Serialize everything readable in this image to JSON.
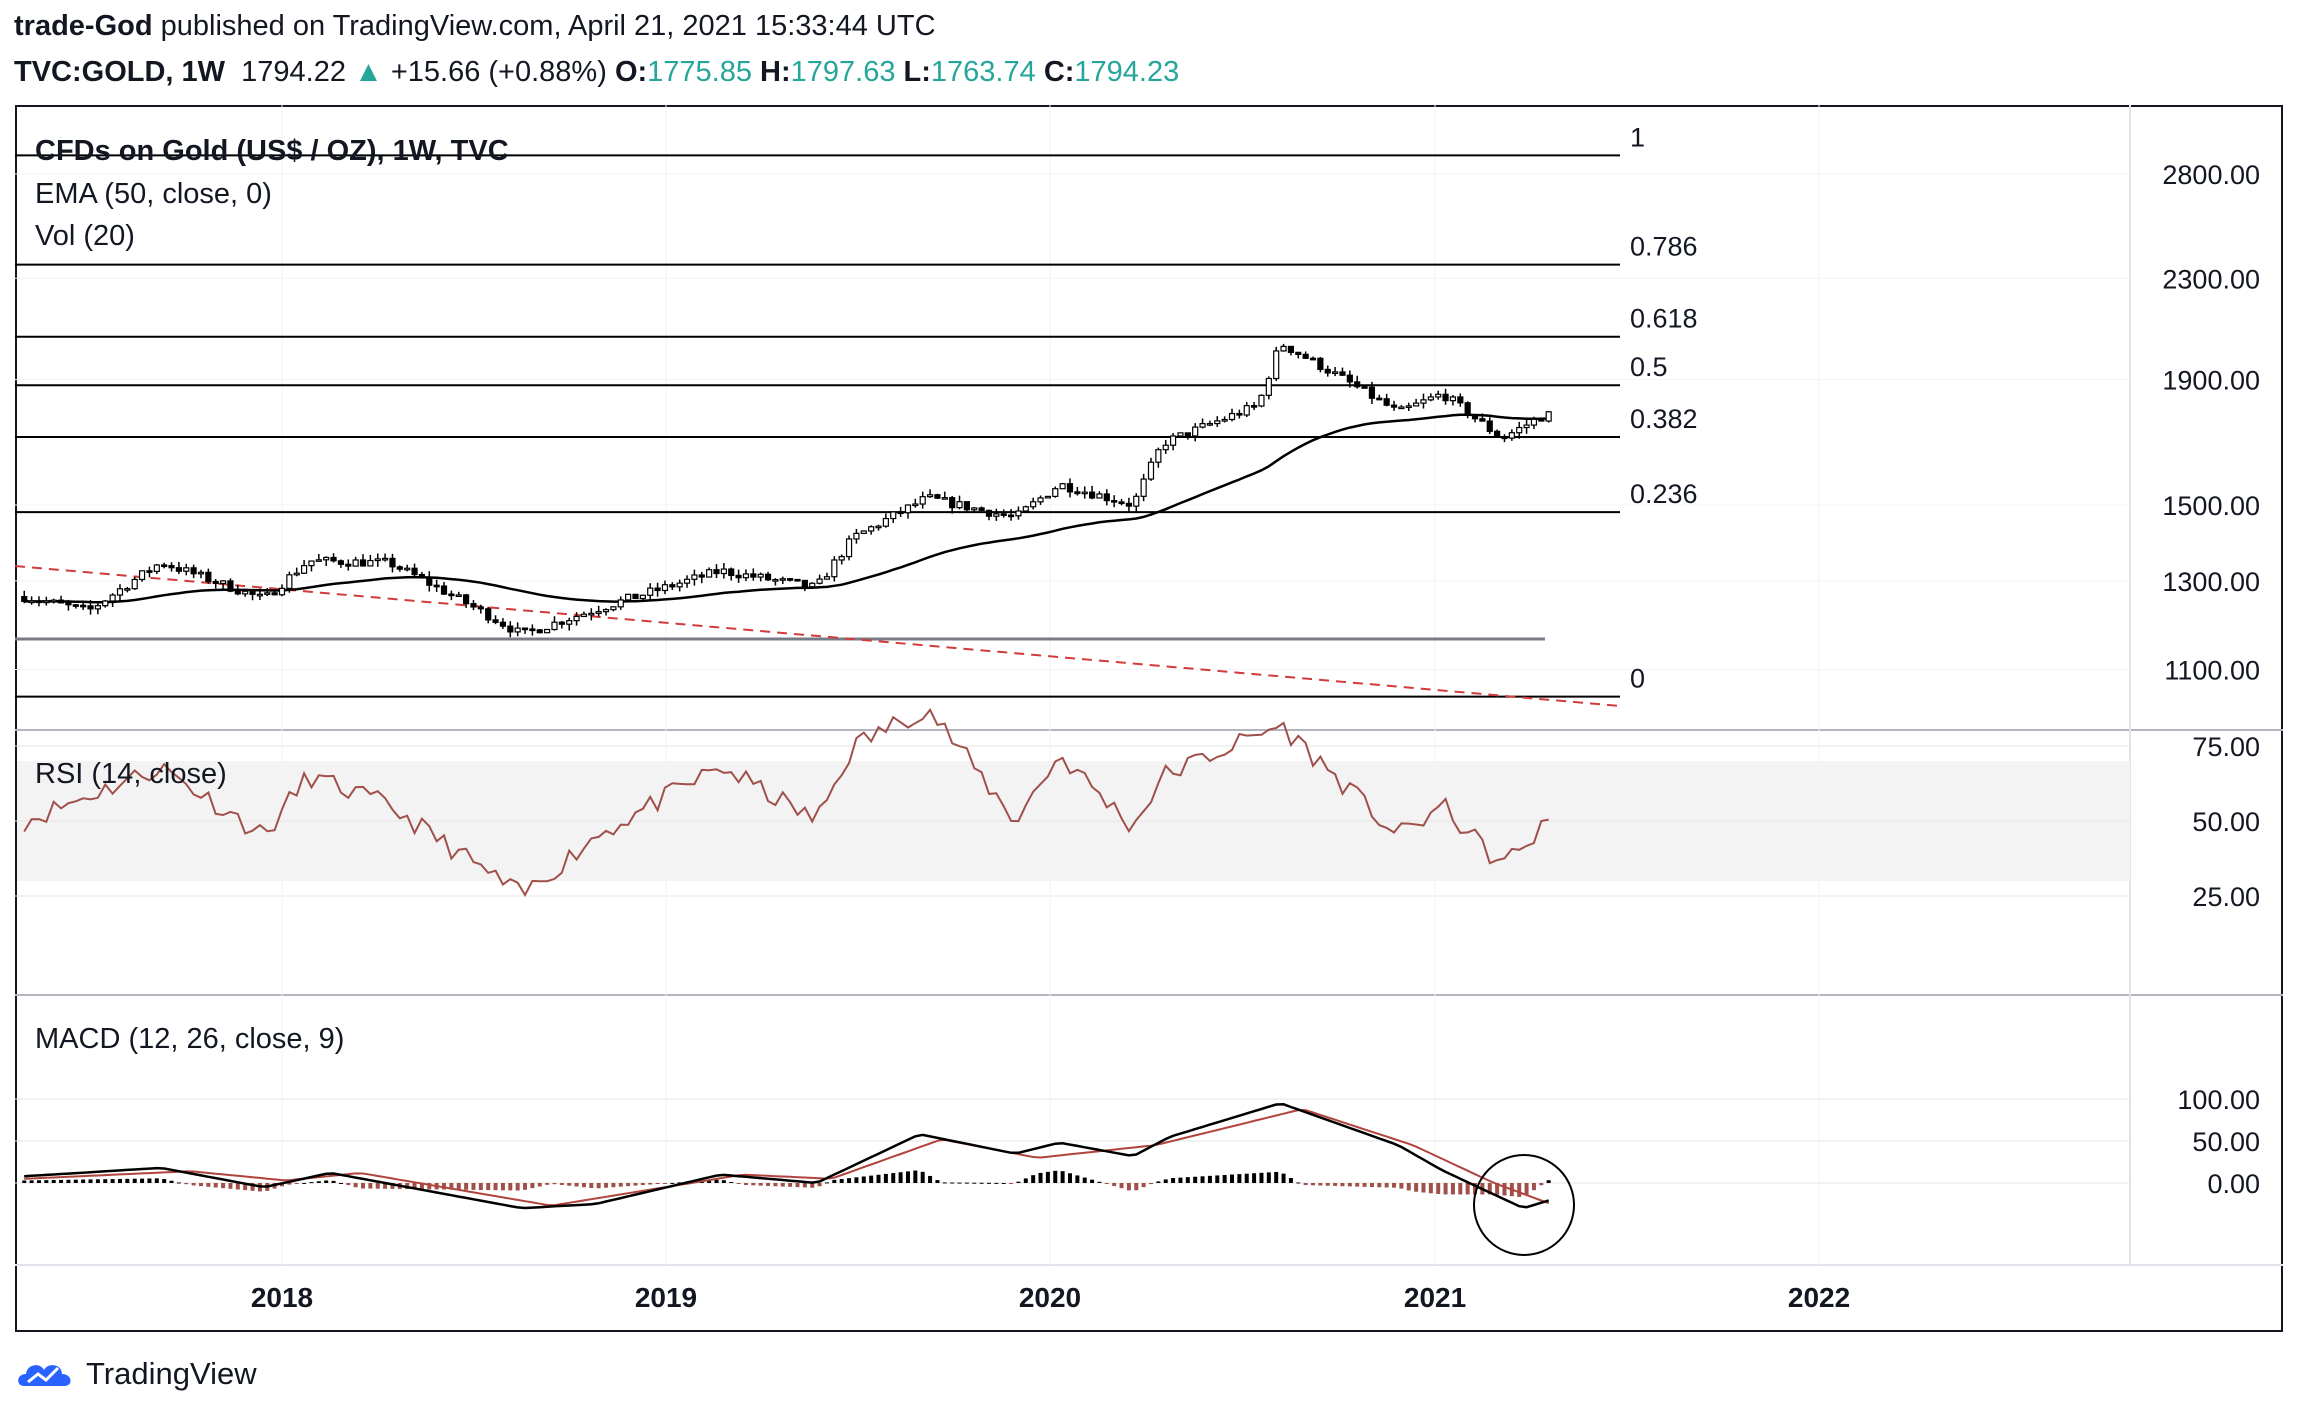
{
  "header": {
    "author": "trade-God",
    "published_text": "published on TradingView.com, April 21, 2021 15:33:44 UTC",
    "symbol": "TVC:GOLD, 1W",
    "last": "1794.22",
    "change_arrow": "▲",
    "change": "+15.66 (+0.88%)",
    "o_label": "O:",
    "o": "1775.85",
    "h_label": "H:",
    "h": "1797.63",
    "l_label": "L:",
    "l": "1763.74",
    "c_label": "C:",
    "c": "1794.23"
  },
  "colors": {
    "up": "#26a69a",
    "candle": "#000000",
    "ema": "#000000",
    "rsi": "#a0504a",
    "macd_line": "#000000",
    "signal_line": "#b0443c",
    "hist_pos": "#000000",
    "hist_neg": "#a0504a",
    "trendline": "#d13b3b"
  },
  "footer": {
    "brand": "TradingView",
    "logo_icon": "tradingview-cloud-logo-icon"
  },
  "chart_data": [
    {
      "type": "candlestick",
      "title": "CFDs on Gold (US$ / OZ), 1W, TVC",
      "indicators": [
        "EMA (50, close, 0)",
        "Vol (20)"
      ],
      "y_axis_ticks": [
        "2800.00",
        "2300.00",
        "1900.00",
        "1500.00",
        "1300.00",
        "1100.00"
      ],
      "x_axis_ticks": [
        "2018",
        "2019",
        "2020",
        "2021",
        "2022"
      ],
      "fibonacci_levels": [
        {
          "label": "1",
          "price": 2900
        },
        {
          "label": "0.786",
          "price": 2360
        },
        {
          "label": "0.618",
          "price": 2060
        },
        {
          "label": "0.5",
          "price": 1880
        },
        {
          "label": "0.382",
          "price": 1705
        },
        {
          "label": "0.236",
          "price": 1480
        },
        {
          "label": "0",
          "price": 1045
        }
      ],
      "support_line_price": 1165,
      "weekly_close_anchors": [
        {
          "date": "2017-05-01",
          "close": 1262
        },
        {
          "date": "2017-07-01",
          "close": 1228
        },
        {
          "date": "2017-09-08",
          "close": 1346
        },
        {
          "date": "2017-12-15",
          "close": 1255
        },
        {
          "date": "2018-01-26",
          "close": 1350
        },
        {
          "date": "2018-04-13",
          "close": 1345
        },
        {
          "date": "2018-08-17",
          "close": 1175
        },
        {
          "date": "2018-10-26",
          "close": 1232
        },
        {
          "date": "2019-02-22",
          "close": 1325
        },
        {
          "date": "2019-05-24",
          "close": 1283
        },
        {
          "date": "2019-06-28",
          "close": 1410
        },
        {
          "date": "2019-09-06",
          "close": 1520
        },
        {
          "date": "2019-11-29",
          "close": 1464
        },
        {
          "date": "2020-01-10",
          "close": 1560
        },
        {
          "date": "2020-03-20",
          "close": 1500
        },
        {
          "date": "2020-04-17",
          "close": 1685
        },
        {
          "date": "2020-07-17",
          "close": 1810
        },
        {
          "date": "2020-08-07",
          "close": 2035
        },
        {
          "date": "2020-11-27",
          "close": 1785
        },
        {
          "date": "2021-01-08",
          "close": 1850
        },
        {
          "date": "2021-03-05",
          "close": 1700
        },
        {
          "date": "2021-04-16",
          "close": 1779
        },
        {
          "date": "2021-04-21",
          "close": 1794.23
        }
      ]
    },
    {
      "type": "line",
      "title": "RSI (14, close)",
      "y_axis_ticks": [
        "75.00",
        "50.00",
        "25.00"
      ],
      "band": [
        30,
        70
      ],
      "anchors": [
        {
          "date": "2017-05-01",
          "value": 50
        },
        {
          "date": "2017-09-08",
          "value": 68
        },
        {
          "date": "2017-12-15",
          "value": 45
        },
        {
          "date": "2018-01-26",
          "value": 65
        },
        {
          "date": "2018-04-13",
          "value": 55
        },
        {
          "date": "2018-08-17",
          "value": 25
        },
        {
          "date": "2018-10-26",
          "value": 45
        },
        {
          "date": "2019-02-22",
          "value": 68
        },
        {
          "date": "2019-05-24",
          "value": 50
        },
        {
          "date": "2019-06-28",
          "value": 75
        },
        {
          "date": "2019-09-06",
          "value": 88
        },
        {
          "date": "2019-11-29",
          "value": 50
        },
        {
          "date": "2020-01-10",
          "value": 72
        },
        {
          "date": "2020-03-20",
          "value": 48
        },
        {
          "date": "2020-04-17",
          "value": 65
        },
        {
          "date": "2020-08-07",
          "value": 82
        },
        {
          "date": "2020-11-27",
          "value": 45
        },
        {
          "date": "2021-01-08",
          "value": 55
        },
        {
          "date": "2021-03-05",
          "value": 35
        },
        {
          "date": "2021-04-21",
          "value": 50
        }
      ]
    },
    {
      "type": "line",
      "title": "MACD (12, 26, close, 9)",
      "y_axis_ticks": [
        "100.00",
        "50.00",
        "0.00"
      ],
      "macd_anchors": [
        {
          "date": "2017-05-01",
          "value": 8
        },
        {
          "date": "2017-09-08",
          "value": 18
        },
        {
          "date": "2017-12-15",
          "value": -5
        },
        {
          "date": "2018-02-16",
          "value": 12
        },
        {
          "date": "2018-08-17",
          "value": -30
        },
        {
          "date": "2018-10-26",
          "value": -25
        },
        {
          "date": "2019-02-22",
          "value": 10
        },
        {
          "date": "2019-05-24",
          "value": 0
        },
        {
          "date": "2019-08-30",
          "value": 58
        },
        {
          "date": "2019-11-29",
          "value": 35
        },
        {
          "date": "2020-01-10",
          "value": 48
        },
        {
          "date": "2020-03-20",
          "value": 32
        },
        {
          "date": "2020-04-24",
          "value": 55
        },
        {
          "date": "2020-08-07",
          "value": 95
        },
        {
          "date": "2020-11-27",
          "value": 45
        },
        {
          "date": "2021-01-08",
          "value": 15
        },
        {
          "date": "2021-03-26",
          "value": -30
        },
        {
          "date": "2021-04-21",
          "value": -20
        }
      ],
      "signal_anchors": [
        {
          "date": "2017-05-01",
          "value": 5
        },
        {
          "date": "2017-10-06",
          "value": 14
        },
        {
          "date": "2018-01-05",
          "value": 3
        },
        {
          "date": "2018-03-16",
          "value": 12
        },
        {
          "date": "2018-09-14",
          "value": -27
        },
        {
          "date": "2019-03-15",
          "value": 10
        },
        {
          "date": "2019-06-07",
          "value": 5
        },
        {
          "date": "2019-09-20",
          "value": 52
        },
        {
          "date": "2019-12-20",
          "value": 30
        },
        {
          "date": "2020-04-10",
          "value": 45
        },
        {
          "date": "2020-08-28",
          "value": 88
        },
        {
          "date": "2020-12-11",
          "value": 45
        },
        {
          "date": "2021-02-26",
          "value": 0
        },
        {
          "date": "2021-04-21",
          "value": -25
        }
      ],
      "annotation": "circle around MACD bullish crossover (Apr 2021)"
    }
  ]
}
